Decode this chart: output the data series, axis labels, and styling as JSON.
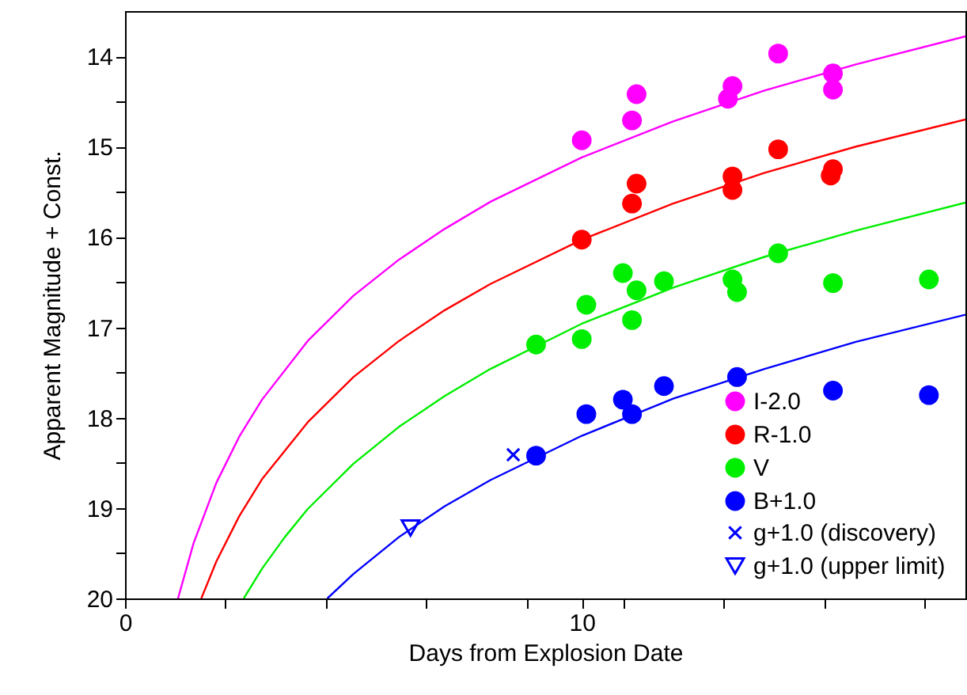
{
  "chart_data": {
    "type": "scatter",
    "xlabel": "Days from Explosion Date",
    "ylabel": "Apparent Magnitude + Const.",
    "xlim": [
      0,
      18.4
    ],
    "xticks": [
      0,
      {
        "value": 2.2,
        "label": null
      },
      {
        "value": 4.4,
        "label": null
      },
      {
        "value": 6.6,
        "label": null
      },
      {
        "value": 8.8,
        "label": null
      },
      10,
      {
        "value": 10.9,
        "label": null
      },
      {
        "value": 13.1,
        "label": null
      },
      {
        "value": 15.3,
        "label": null
      },
      {
        "value": 17.5,
        "label": null
      }
    ],
    "ylim": [
      20,
      13.5
    ],
    "yticks": [
      14,
      {
        "value": 14.5,
        "label": null
      },
      15,
      {
        "value": 15.5,
        "label": null
      },
      16,
      {
        "value": 16.5,
        "label": null
      },
      17,
      {
        "value": 17.5,
        "label": null
      },
      18,
      {
        "value": 18.5,
        "label": null
      },
      19,
      {
        "value": 19.5,
        "label": null
      },
      20
    ],
    "grid": false,
    "legend": "bottom right",
    "series": [
      {
        "name": "I-2.0",
        "color": "#ff00ff",
        "marker": "circle",
        "x": [
          10.0,
          11.2,
          11.1,
          13.3,
          13.2,
          14.3,
          15.5,
          15.5
        ],
        "values": [
          14.93,
          14.42,
          14.71,
          14.33,
          14.47,
          13.97,
          14.19,
          14.37
        ]
      },
      {
        "name": "R-1.0",
        "color": "#ff0000",
        "marker": "circle",
        "x": [
          10.0,
          11.2,
          11.1,
          13.3,
          13.3,
          14.3,
          15.5,
          15.45
        ],
        "values": [
          16.03,
          15.41,
          15.63,
          15.33,
          15.48,
          15.03,
          15.25,
          15.32
        ]
      },
      {
        "name": "V",
        "color": "#00ee00",
        "marker": "circle",
        "x": [
          9.0,
          10.0,
          10.1,
          10.9,
          11.2,
          11.1,
          11.8,
          13.3,
          13.4,
          14.3,
          15.5,
          17.6
        ],
        "values": [
          17.19,
          17.13,
          16.75,
          16.4,
          16.59,
          16.92,
          16.49,
          16.47,
          16.61,
          16.18,
          16.51,
          16.47
        ],
        "errors": [
          0.06,
          null,
          null,
          null,
          null,
          null,
          null,
          null,
          null,
          null,
          null,
          null
        ]
      },
      {
        "name": "B+1.0",
        "color": "#0000ff",
        "marker": "circle",
        "x": [
          9.0,
          10.1,
          10.9,
          11.1,
          11.8,
          13.4,
          15.5,
          17.6
        ],
        "values": [
          18.42,
          17.96,
          17.8,
          17.96,
          17.65,
          17.55,
          17.7,
          17.75
        ]
      },
      {
        "name": "g+1.0 (discovery)",
        "color": "#0000ff",
        "marker": "cross",
        "x": [
          8.5
        ],
        "values": [
          18.41
        ]
      },
      {
        "name": "g+1.0 (upper limit)",
        "color": "#0000ff",
        "marker": "triangle",
        "x": [
          6.25
        ],
        "values": [
          19.22
        ]
      },
      {
        "type": "line",
        "color": "#ff00ff",
        "x": [
          1.16,
          1.5,
          2,
          2.5,
          3,
          4,
          5,
          6,
          7,
          8,
          10,
          12,
          14,
          16,
          18.4
        ],
        "values": [
          20.0,
          19.39,
          18.72,
          18.21,
          17.8,
          17.15,
          16.65,
          16.25,
          15.91,
          15.61,
          15.12,
          14.72,
          14.38,
          14.09,
          13.78
        ]
      },
      {
        "type": "line",
        "color": "#ff0000",
        "x": [
          1.67,
          2,
          2.5,
          3,
          4,
          5,
          6,
          7,
          8,
          10,
          12,
          14,
          16,
          18.4
        ],
        "values": [
          20.0,
          19.59,
          19.09,
          18.68,
          18.05,
          17.55,
          17.15,
          16.81,
          16.52,
          16.03,
          15.63,
          15.29,
          15.0,
          14.7
        ]
      },
      {
        "type": "line",
        "color": "#00ee00",
        "x": [
          2.6,
          3,
          3.5,
          4,
          5,
          6,
          7,
          8,
          10,
          12,
          14,
          16,
          18.4
        ],
        "values": [
          20.0,
          19.67,
          19.32,
          19.01,
          18.51,
          18.1,
          17.76,
          17.46,
          16.96,
          16.56,
          16.22,
          15.93,
          15.62
        ]
      },
      {
        "type": "line",
        "color": "#0000ff",
        "x": [
          4.43,
          5,
          6,
          7,
          8,
          10,
          12,
          14,
          16,
          18.4
        ],
        "values": [
          20.0,
          19.73,
          19.32,
          18.98,
          18.69,
          18.2,
          17.79,
          17.46,
          17.16,
          16.86
        ]
      }
    ]
  }
}
